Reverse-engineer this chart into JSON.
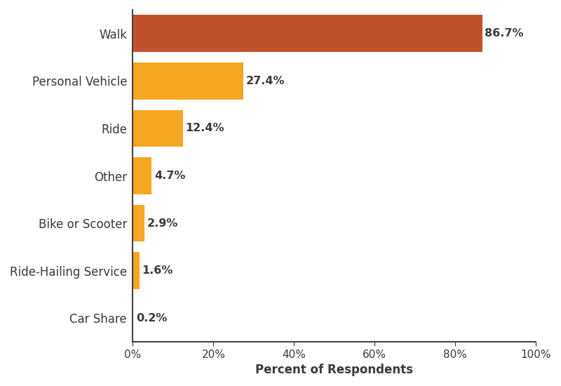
{
  "categories": [
    "Walk",
    "Personal Vehicle",
    "Ride",
    "Other",
    "Bike or Scooter",
    "Ride-Hailing Service",
    "Car Share"
  ],
  "values": [
    86.7,
    27.4,
    12.4,
    4.7,
    2.9,
    1.6,
    0.2
  ],
  "labels": [
    "86.7%",
    "27.4%",
    "12.4%",
    "4.7%",
    "2.9%",
    "1.6%",
    "0.2%"
  ],
  "xlabel": "Percent of Respondents",
  "xlim": [
    0,
    100
  ],
  "xticks": [
    0,
    20,
    40,
    60,
    80,
    100
  ],
  "xtick_labels": [
    "0%",
    "20%",
    "40%",
    "60%",
    "80%",
    "100%"
  ],
  "background_color": "#ffffff",
  "bar_height": 0.78,
  "label_fontsize": 11.5,
  "tick_fontsize": 11,
  "xlabel_fontsize": 12,
  "category_fontsize": 12,
  "label_color": "#3a3a3a",
  "walk_bar_color": "#C0522B",
  "other_bar_color": "#F5A623",
  "spine_color": "#444444"
}
